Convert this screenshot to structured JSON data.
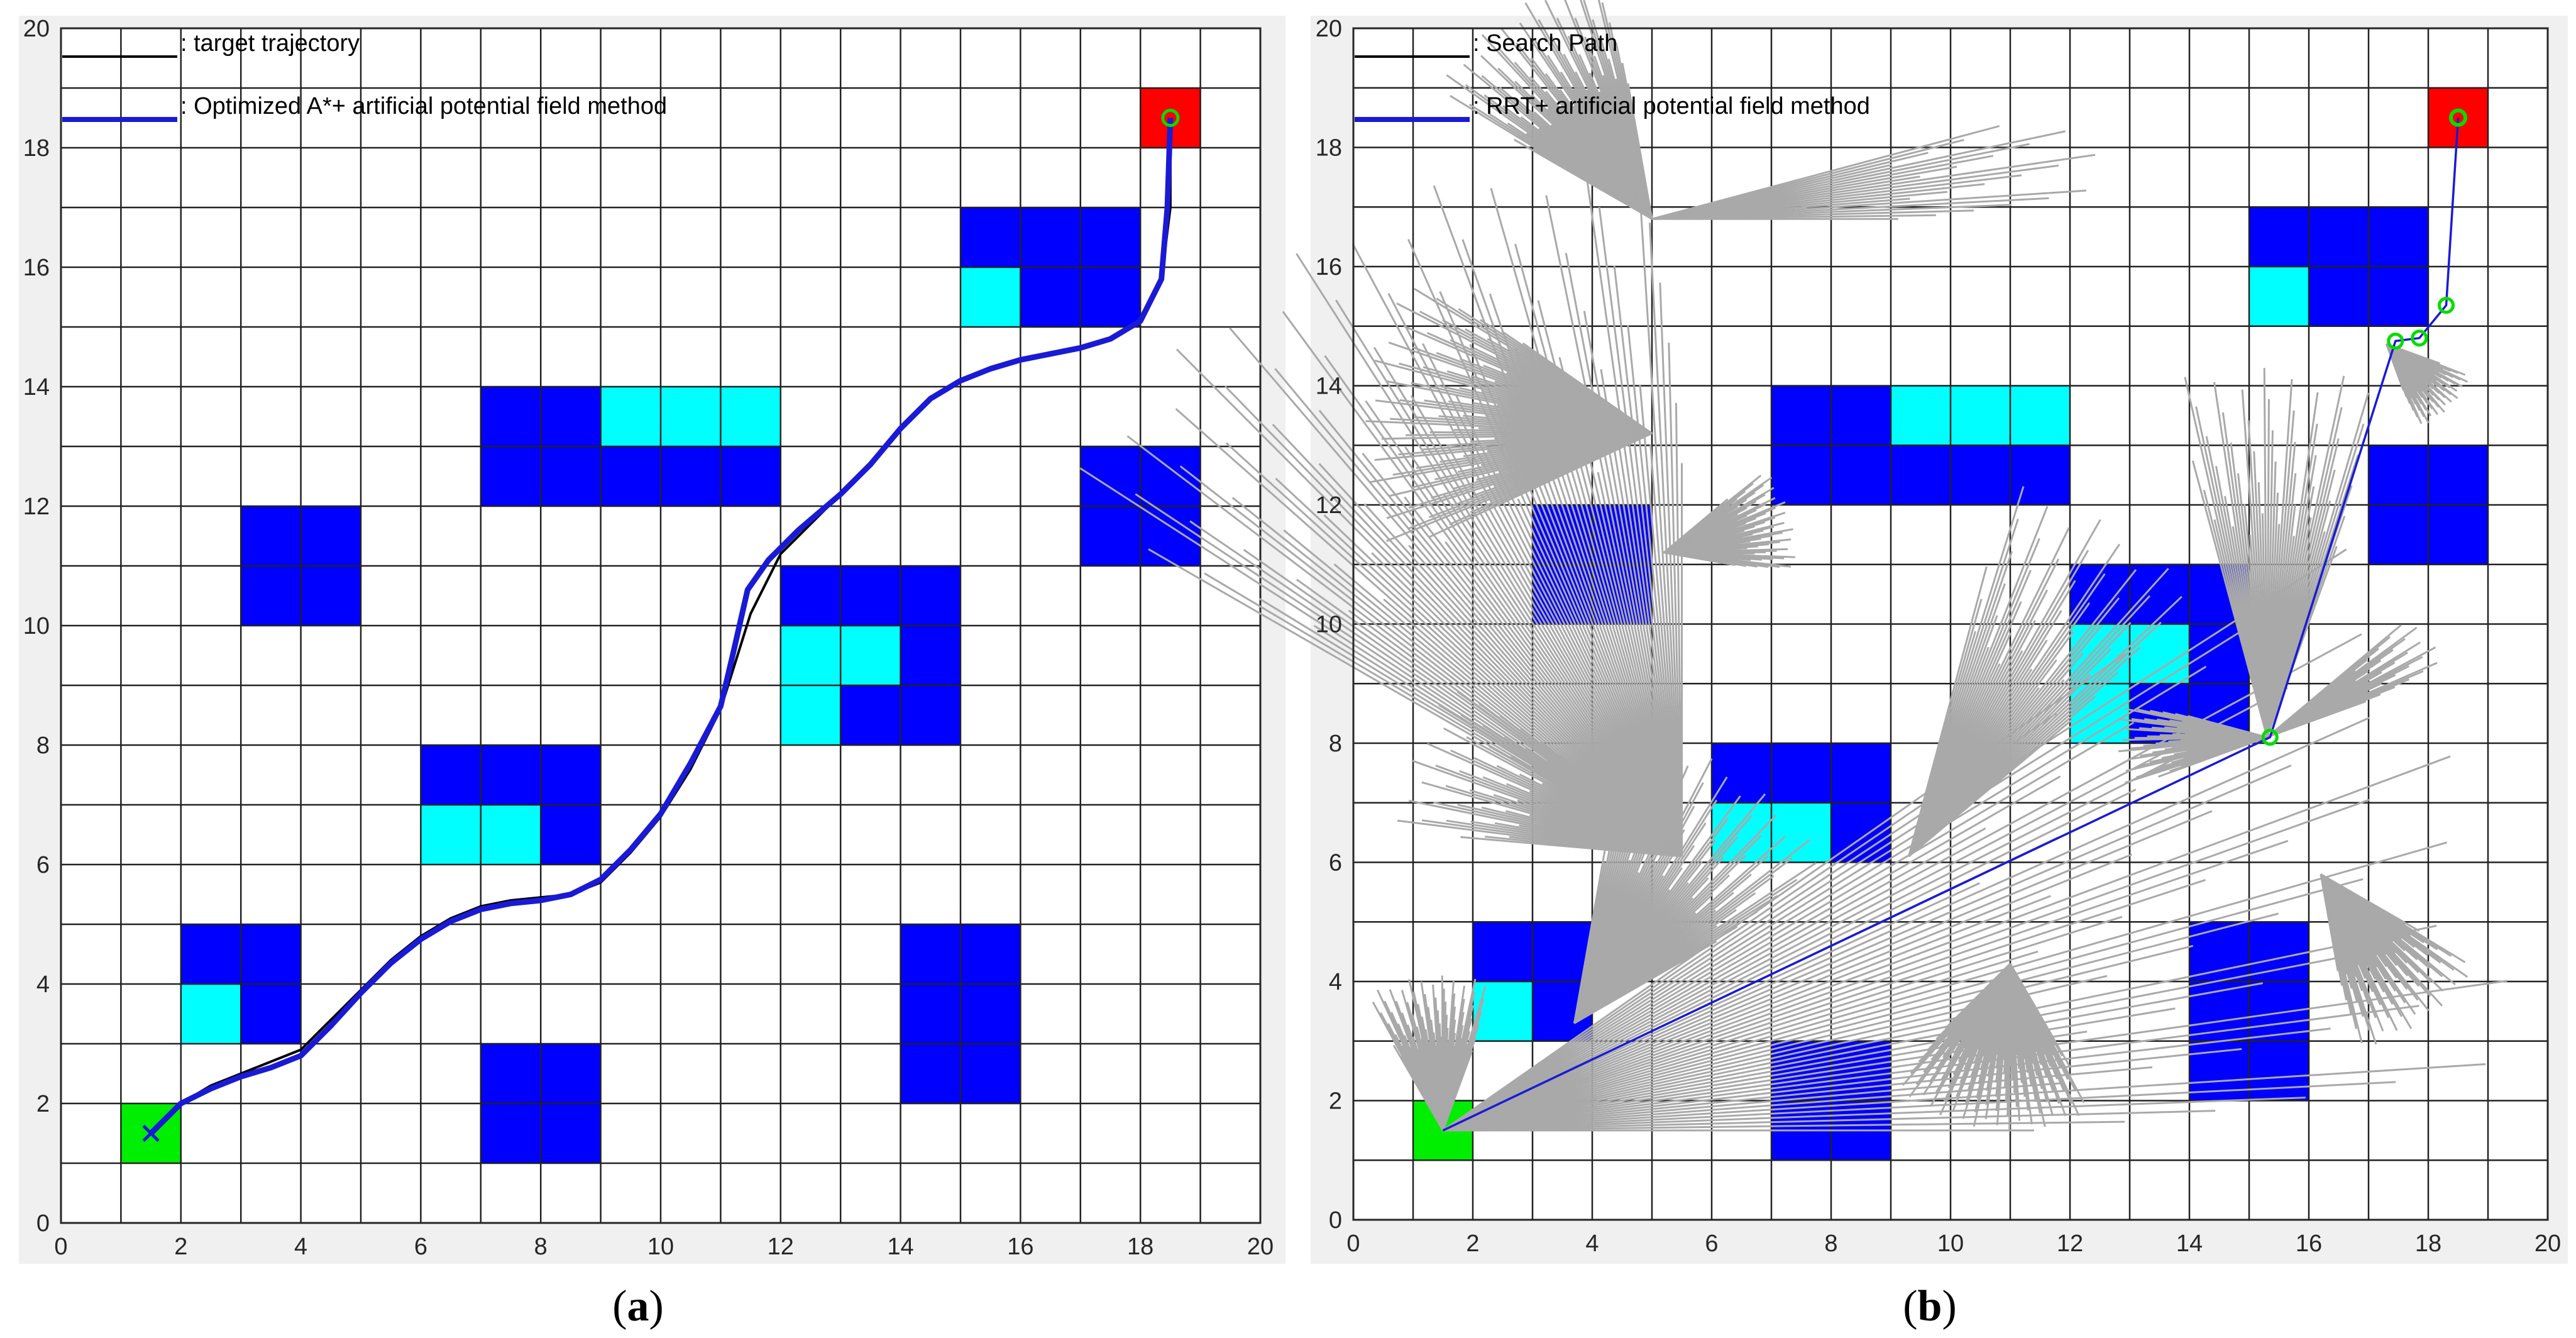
{
  "chart_data": [
    {
      "type": "grid-path-plot",
      "panel_label": "a",
      "xlim": [
        0,
        20
      ],
      "ylim": [
        0,
        20
      ],
      "xticks": [
        "0",
        "2",
        "4",
        "6",
        "8",
        "10",
        "12",
        "14",
        "16",
        "18",
        "20"
      ],
      "yticks": [
        "0",
        "2",
        "4",
        "6",
        "8",
        "10",
        "12",
        "14",
        "16",
        "18",
        "20"
      ],
      "grid": true,
      "legend": [
        {
          "label": ": target trajectory",
          "color": "#000000"
        },
        {
          "label": ": Optimized A*+ artificial potential field method",
          "color": "#1a1ad6"
        }
      ],
      "start_cell": [
        1,
        1
      ],
      "goal_cell": [
        18,
        18
      ],
      "goal_marker": [
        18.5,
        18.5
      ],
      "blue_cells": [
        [
          15,
          16
        ],
        [
          16,
          16
        ],
        [
          17,
          16
        ],
        [
          16,
          15
        ],
        [
          17,
          15
        ],
        [
          7,
          13
        ],
        [
          8,
          13
        ],
        [
          7,
          12
        ],
        [
          8,
          12
        ],
        [
          9,
          12
        ],
        [
          10,
          12
        ],
        [
          11,
          12
        ],
        [
          17,
          12
        ],
        [
          18,
          12
        ],
        [
          17,
          11
        ],
        [
          18,
          11
        ],
        [
          3,
          11
        ],
        [
          4,
          11
        ],
        [
          3,
          10
        ],
        [
          4,
          10
        ],
        [
          12,
          10
        ],
        [
          13,
          10
        ],
        [
          14,
          10
        ],
        [
          14,
          9
        ],
        [
          13,
          8
        ],
        [
          14,
          8
        ],
        [
          6,
          7
        ],
        [
          7,
          7
        ],
        [
          8,
          7
        ],
        [
          8,
          6
        ],
        [
          2,
          4
        ],
        [
          3,
          4
        ],
        [
          3,
          3
        ],
        [
          14,
          4
        ],
        [
          15,
          4
        ],
        [
          14,
          3
        ],
        [
          15,
          3
        ],
        [
          14,
          2
        ],
        [
          15,
          2
        ],
        [
          7,
          2
        ],
        [
          8,
          2
        ],
        [
          7,
          1
        ],
        [
          8,
          1
        ]
      ],
      "cyan_cells": [
        [
          15,
          15
        ],
        [
          9,
          13
        ],
        [
          10,
          13
        ],
        [
          11,
          13
        ],
        [
          12,
          9
        ],
        [
          13,
          9
        ],
        [
          12,
          8
        ],
        [
          6,
          6
        ],
        [
          7,
          6
        ],
        [
          2,
          3
        ]
      ],
      "series": [
        {
          "name": "target trajectory",
          "color": "#000000",
          "points": [
            [
              1.5,
              1.5
            ],
            [
              2,
              2
            ],
            [
              2.5,
              2.3
            ],
            [
              3,
              2.5
            ],
            [
              3.5,
              2.7
            ],
            [
              4,
              2.9
            ],
            [
              4.5,
              3.4
            ],
            [
              5,
              3.9
            ],
            [
              5.5,
              4.4
            ],
            [
              6,
              4.8
            ],
            [
              6.5,
              5.1
            ],
            [
              7,
              5.3
            ],
            [
              7.5,
              5.4
            ],
            [
              8,
              5.45
            ],
            [
              8.5,
              5.5
            ],
            [
              9,
              5.7
            ],
            [
              9.5,
              6.2
            ],
            [
              10,
              6.8
            ],
            [
              10.5,
              7.6
            ],
            [
              11,
              8.6
            ],
            [
              11.5,
              10.2
            ],
            [
              12,
              11.2
            ],
            [
              12.5,
              11.7
            ],
            [
              13,
              12.2
            ],
            [
              13.5,
              12.7
            ],
            [
              14,
              13.3
            ],
            [
              14.5,
              13.8
            ],
            [
              15,
              14.1
            ],
            [
              15.5,
              14.3
            ],
            [
              16,
              14.45
            ],
            [
              16.5,
              14.55
            ],
            [
              17,
              14.65
            ],
            [
              17.5,
              14.8
            ],
            [
              18,
              15.1
            ],
            [
              18.35,
              15.8
            ],
            [
              18.5,
              17
            ],
            [
              18.5,
              18.5
            ]
          ]
        },
        {
          "name": "Optimized A*+ artificial potential field method",
          "color": "#1a1ad6",
          "points": [
            [
              1.5,
              1.5
            ],
            [
              2,
              2
            ],
            [
              2.5,
              2.25
            ],
            [
              3,
              2.45
            ],
            [
              3.5,
              2.6
            ],
            [
              4,
              2.8
            ],
            [
              4.5,
              3.3
            ],
            [
              5,
              3.85
            ],
            [
              5.5,
              4.35
            ],
            [
              6,
              4.75
            ],
            [
              6.5,
              5.05
            ],
            [
              7,
              5.25
            ],
            [
              7.5,
              5.35
            ],
            [
              8,
              5.4
            ],
            [
              8.5,
              5.5
            ],
            [
              9,
              5.75
            ],
            [
              9.5,
              6.25
            ],
            [
              10,
              6.85
            ],
            [
              10.5,
              7.7
            ],
            [
              11,
              8.65
            ],
            [
              11.2,
              9.5
            ],
            [
              11.45,
              10.6
            ],
            [
              11.8,
              11.1
            ],
            [
              12.3,
              11.6
            ],
            [
              13,
              12.2
            ],
            [
              13.5,
              12.7
            ],
            [
              14,
              13.3
            ],
            [
              14.5,
              13.8
            ],
            [
              15,
              14.1
            ],
            [
              15.5,
              14.3
            ],
            [
              16,
              14.45
            ],
            [
              16.5,
              14.55
            ],
            [
              17,
              14.65
            ],
            [
              17.5,
              14.8
            ],
            [
              18,
              15.1
            ],
            [
              18.35,
              15.8
            ],
            [
              18.45,
              17
            ],
            [
              18.5,
              18.5
            ]
          ]
        }
      ]
    },
    {
      "type": "grid-path-plot",
      "panel_label": "b",
      "xlim": [
        0,
        20
      ],
      "ylim": [
        0,
        20
      ],
      "xticks": [
        "0",
        "2",
        "4",
        "6",
        "8",
        "10",
        "12",
        "14",
        "16",
        "18",
        "20"
      ],
      "yticks": [
        "0",
        "2",
        "4",
        "6",
        "8",
        "10",
        "12",
        "14",
        "16",
        "18",
        "20"
      ],
      "grid": true,
      "legend": [
        {
          "label": ": Search Path",
          "color": "#000000"
        },
        {
          "label": ": RRT+ artificial potential field method",
          "color": "#1a1ad6"
        }
      ],
      "start_cell": [
        1,
        1
      ],
      "goal_cell": [
        18,
        18
      ],
      "goal_marker": [
        18.5,
        18.5
      ],
      "blue_cells": [
        [
          15,
          16
        ],
        [
          16,
          16
        ],
        [
          17,
          16
        ],
        [
          16,
          15
        ],
        [
          17,
          15
        ],
        [
          7,
          13
        ],
        [
          8,
          13
        ],
        [
          7,
          12
        ],
        [
          8,
          12
        ],
        [
          9,
          12
        ],
        [
          10,
          12
        ],
        [
          11,
          12
        ],
        [
          17,
          12
        ],
        [
          18,
          12
        ],
        [
          17,
          11
        ],
        [
          18,
          11
        ],
        [
          3,
          11
        ],
        [
          4,
          11
        ],
        [
          3,
          10
        ],
        [
          4,
          10
        ],
        [
          12,
          10
        ],
        [
          13,
          10
        ],
        [
          14,
          10
        ],
        [
          14,
          9
        ],
        [
          13,
          8
        ],
        [
          14,
          8
        ],
        [
          6,
          7
        ],
        [
          7,
          7
        ],
        [
          8,
          7
        ],
        [
          8,
          6
        ],
        [
          2,
          4
        ],
        [
          3,
          4
        ],
        [
          3,
          3
        ],
        [
          14,
          4
        ],
        [
          15,
          4
        ],
        [
          14,
          3
        ],
        [
          15,
          3
        ],
        [
          14,
          2
        ],
        [
          15,
          2
        ],
        [
          7,
          2
        ],
        [
          8,
          2
        ],
        [
          7,
          1
        ],
        [
          8,
          1
        ]
      ],
      "cyan_cells": [
        [
          15,
          15
        ],
        [
          9,
          13
        ],
        [
          10,
          13
        ],
        [
          11,
          13
        ],
        [
          12,
          9
        ],
        [
          13,
          9
        ],
        [
          12,
          8
        ],
        [
          6,
          6
        ],
        [
          7,
          6
        ],
        [
          2,
          3
        ]
      ],
      "search_fans": [
        {
          "origin": [
            1.5,
            1.5
          ],
          "angles": [
            0,
            35
          ],
          "length": 18
        },
        {
          "origin": [
            1.5,
            1.5
          ],
          "angles": [
            70,
            120
          ],
          "length": 2.6
        },
        {
          "origin": [
            3.7,
            3.3
          ],
          "angles": [
            30,
            80
          ],
          "length": 5
        },
        {
          "origin": [
            5.5,
            6.1
          ],
          "angles": [
            90,
            150
          ],
          "length": 12
        },
        {
          "origin": [
            5.5,
            6.1
          ],
          "angles": [
            140,
            175
          ],
          "length": 4.8
        },
        {
          "origin": [
            5,
            16.8
          ],
          "angles": [
            0,
            15
          ],
          "length": 7.5
        },
        {
          "origin": [
            5,
            16.8
          ],
          "angles": [
            100,
            150
          ],
          "length": 4.2
        },
        {
          "origin": [
            5,
            13.2
          ],
          "angles": [
            145,
            205
          ],
          "length": 4.8
        },
        {
          "origin": [
            5.2,
            11.2
          ],
          "angles": [
            -10,
            40
          ],
          "length": 2.2
        },
        {
          "origin": [
            9.3,
            6.1
          ],
          "angles": [
            40,
            75
          ],
          "length": 6.5
        },
        {
          "origin": [
            11,
            4.3
          ],
          "angles": [
            225,
            300
          ],
          "length": 2.8
        },
        {
          "origin": [
            15.3,
            8.1
          ],
          "angles": [
            70,
            105
          ],
          "length": 6.2
        },
        {
          "origin": [
            15.3,
            8.1
          ],
          "angles": [
            20,
            40
          ],
          "length": 3.2
        },
        {
          "origin": [
            15.3,
            8.1
          ],
          "angles": [
            165,
            200
          ],
          "length": 2.5
        },
        {
          "origin": [
            16.2,
            5.8
          ],
          "angles": [
            -80,
            -30
          ],
          "length": 3
        },
        {
          "origin": [
            17.3,
            14.7
          ],
          "angles": [
            -70,
            -20
          ],
          "length": 1.5
        }
      ],
      "series": [
        {
          "name": "RRT+ artificial potential field method",
          "color": "#1a1ad6",
          "points": [
            [
              1.5,
              1.5
            ],
            [
              15.35,
              8.1
            ],
            [
              17.45,
              14.75
            ],
            [
              17.85,
              14.8
            ],
            [
              18.3,
              15.35
            ],
            [
              18.5,
              18.5
            ]
          ],
          "node_markers": [
            [
              15.35,
              8.1
            ],
            [
              17.45,
              14.75
            ],
            [
              17.85,
              14.8
            ],
            [
              18.3,
              15.35
            ],
            [
              18.5,
              18.5
            ]
          ]
        }
      ]
    }
  ]
}
